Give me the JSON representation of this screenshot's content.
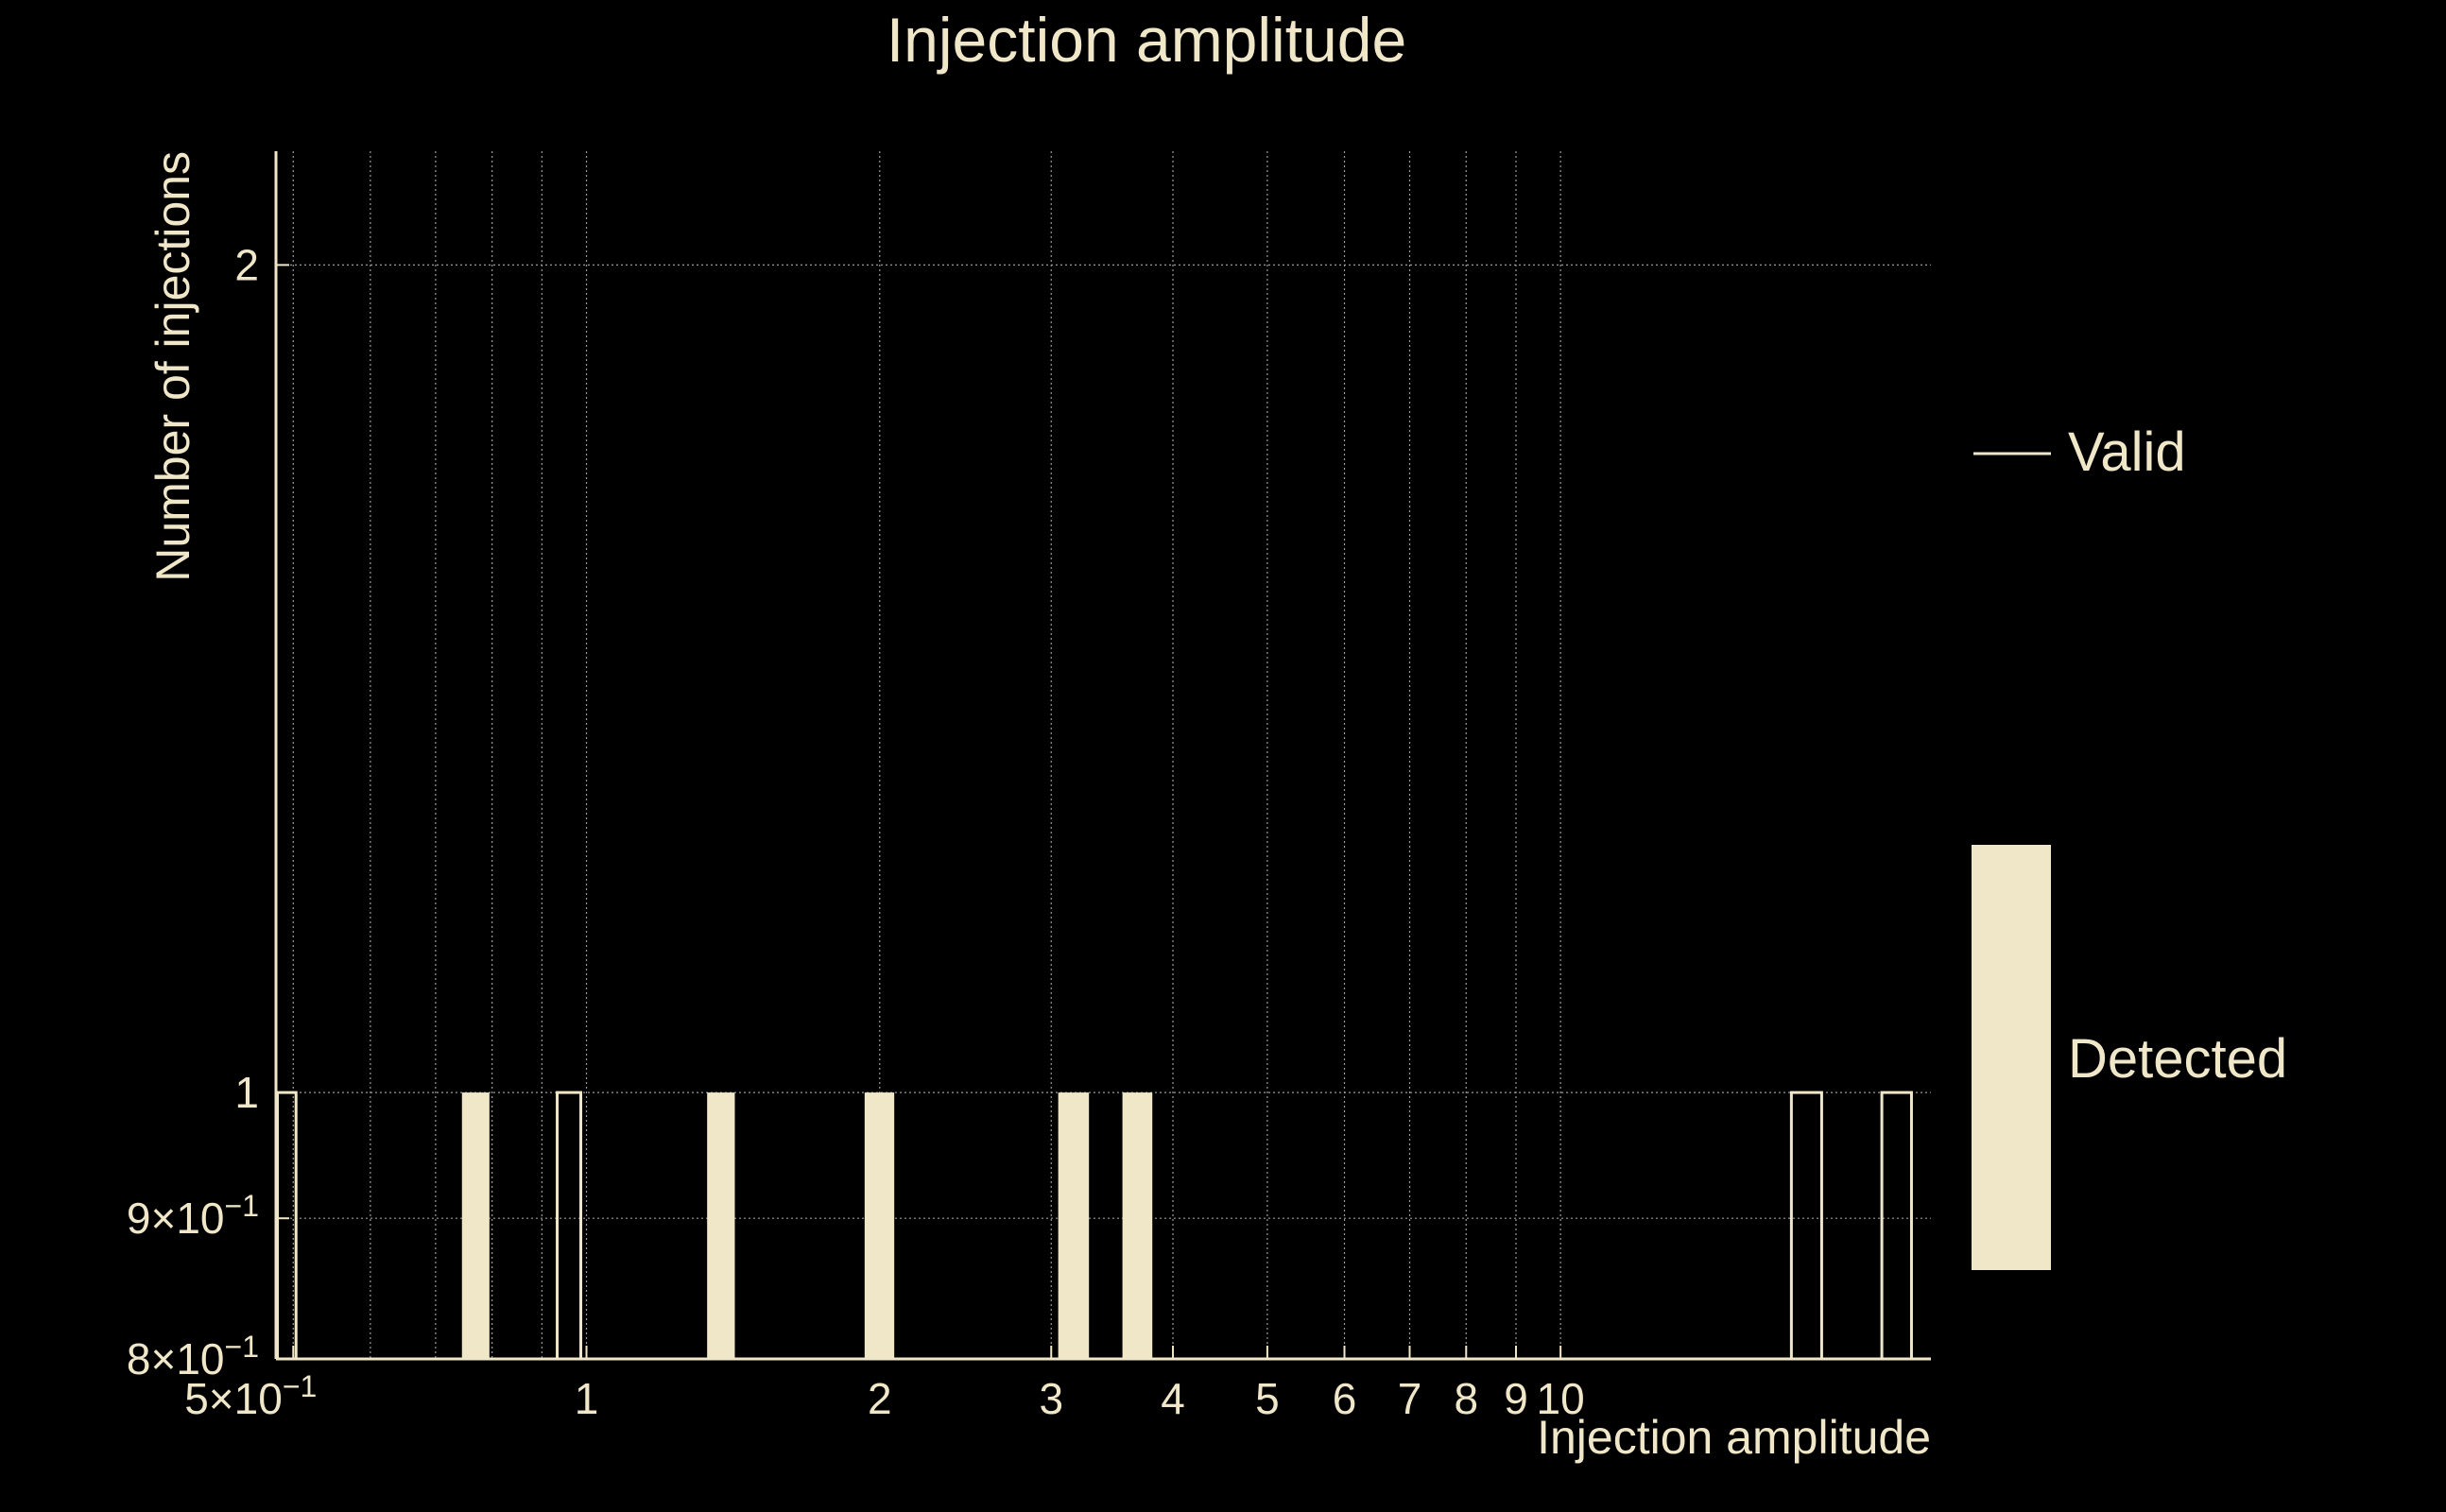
{
  "colors": {
    "background": "#000000",
    "foreground": "#F0E6C8",
    "grid": "#9a9a9a"
  },
  "chart_data": {
    "type": "bar",
    "title": "Injection amplitude",
    "xlabel": "Injection amplitude",
    "ylabel": "Number of injections",
    "xscale": "log",
    "yscale": "log",
    "xlim": [
      0.48,
      24.0
    ],
    "ylim": [
      0.8,
      2.2
    ],
    "grid": true,
    "legend_position": "right",
    "x_ticks": [
      {
        "value": 0.5,
        "label": "5×10",
        "exp": "−1"
      },
      {
        "value": 1,
        "label": "1"
      },
      {
        "value": 2,
        "label": "2"
      },
      {
        "value": 3,
        "label": "3"
      },
      {
        "value": 4,
        "label": "4"
      },
      {
        "value": 5,
        "label": "5"
      },
      {
        "value": 6,
        "label": "6"
      },
      {
        "value": 7,
        "label": "7"
      },
      {
        "value": 8,
        "label": "8"
      },
      {
        "value": 9,
        "label": "9"
      },
      {
        "value": 10,
        "label": "10"
      }
    ],
    "x_minor_grid": [
      0.6,
      0.7,
      0.8,
      0.9
    ],
    "y_ticks": [
      {
        "value": 0.8,
        "label": "8×10",
        "exp": "−1"
      },
      {
        "value": 0.9,
        "label": "9×10",
        "exp": "−1"
      },
      {
        "value": 1,
        "label": "1"
      },
      {
        "value": 2,
        "label": "2"
      }
    ],
    "series": [
      {
        "name": "Valid",
        "style": "outline",
        "bins": [
          {
            "x0": 0.48,
            "x1": 0.505,
            "count": 1
          },
          {
            "x0": 0.93,
            "x1": 0.99,
            "count": 1
          },
          {
            "x0": 17.2,
            "x1": 18.6,
            "count": 1
          },
          {
            "x0": 21.3,
            "x1": 23.0,
            "count": 1
          }
        ]
      },
      {
        "name": "Detected",
        "style": "filled",
        "bins": [
          {
            "x0": 0.745,
            "x1": 0.795,
            "count": 1
          },
          {
            "x0": 1.33,
            "x1": 1.42,
            "count": 1
          },
          {
            "x0": 1.93,
            "x1": 2.07,
            "count": 1
          },
          {
            "x0": 3.05,
            "x1": 3.28,
            "count": 1
          },
          {
            "x0": 3.55,
            "x1": 3.81,
            "count": 1
          }
        ]
      }
    ]
  }
}
